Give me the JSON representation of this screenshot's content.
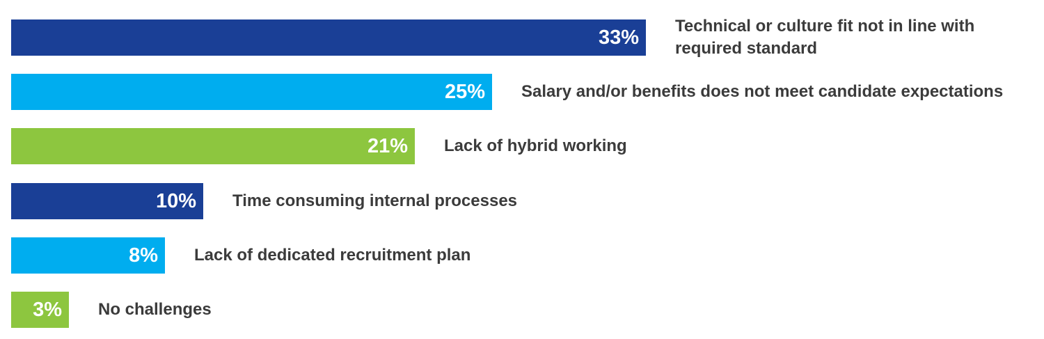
{
  "chart_data": {
    "type": "bar",
    "orientation": "horizontal",
    "categories": [
      "Technical or culture fit not in line with required standard",
      "Salary and/or benefits does not meet candidate expectations",
      "Lack of hybrid working",
      "Time consuming internal processes",
      "Lack of dedicated recruitment plan",
      "No challenges"
    ],
    "values": [
      33,
      25,
      21,
      10,
      8,
      3
    ],
    "value_labels": [
      "33%",
      "25%",
      "21%",
      "10%",
      "8%",
      "3%"
    ],
    "label_lines": [
      [
        "Technical or culture fit not in line with",
        "required standard"
      ],
      [
        "Salary and/or benefits does not meet candidate expectations"
      ],
      [
        "Lack of hybrid working"
      ],
      [
        "Time consuming internal processes"
      ],
      [
        "Lack of dedicated recruitment plan"
      ],
      [
        "No challenges"
      ]
    ],
    "colors": [
      "#1a3f96",
      "#00adef",
      "#8dc63f",
      "#1a3f96",
      "#00adef",
      "#8dc63f"
    ],
    "title": "",
    "xlabel": "",
    "ylabel": "",
    "xlim": [
      0,
      33
    ],
    "grid": false,
    "legend": "none"
  }
}
